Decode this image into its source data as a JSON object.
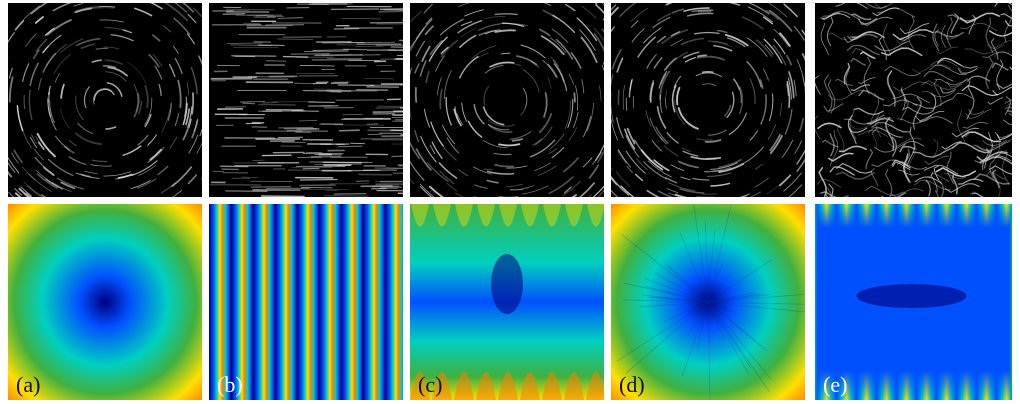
{
  "panels": [
    {
      "id": "a",
      "label": "(a)",
      "label_color": "#111111",
      "field": "vortex",
      "heat": "radial"
    },
    {
      "id": "b",
      "label": "(b)",
      "label_color": "#ffffff",
      "field": "uniform",
      "heat": "stripes"
    },
    {
      "id": "c",
      "label": "(c)",
      "label_color": "#111111",
      "field": "vortex-noisy",
      "heat": "wave-bottom"
    },
    {
      "id": "d",
      "label": "(d)",
      "label_color": "#111111",
      "field": "vortex",
      "heat": "radial-noisy"
    },
    {
      "id": "e",
      "label": "(e)",
      "label_color": "#ffffff",
      "field": "wavy",
      "heat": "stripes-mixed"
    }
  ],
  "colors": {
    "jet_low": "#00007f",
    "jet_blue": "#0050ff",
    "jet_cyan": "#00d0c0",
    "jet_green": "#40b040",
    "jet_yellow": "#ffe000",
    "jet_orange": "#ff8000",
    "jet_red": "#b00000",
    "lic_bg": "#000000",
    "lic_stroke": "#d8d8d8"
  }
}
